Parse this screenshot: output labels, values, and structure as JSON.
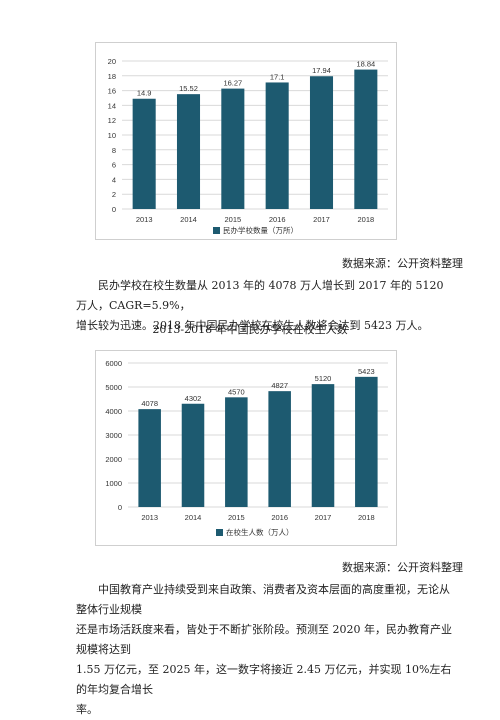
{
  "chart1": {
    "legend": "民办学校数量（万所）",
    "color": "#1d5a70"
  },
  "chart2": {
    "legend": "在校生人数（万人）",
    "color": "#1d5a70"
  },
  "chart_data": [
    {
      "type": "bar",
      "categories": [
        "2013",
        "2014",
        "2015",
        "2016",
        "2017",
        "2018"
      ],
      "series": [
        {
          "name": "民办学校数量（万所）",
          "values": [
            14.9,
            15.52,
            16.27,
            17.1,
            17.94,
            18.84
          ]
        }
      ],
      "data_labels": [
        "14.9",
        "15.52",
        "16.27",
        "17.1",
        "17.94",
        "18.84"
      ],
      "ylim": [
        0,
        20
      ],
      "yticks": [
        0,
        2,
        4,
        6,
        8,
        10,
        12,
        14,
        16,
        18,
        20
      ],
      "legend_position": "bottom",
      "grid": true
    },
    {
      "type": "bar",
      "title": "2013-2018年中国民办学校在校生人数",
      "categories": [
        "2013",
        "2014",
        "2015",
        "2016",
        "2017",
        "2018"
      ],
      "series": [
        {
          "name": "在校生人数（万人）",
          "values": [
            4078,
            4302,
            4570,
            4827,
            5120,
            5423
          ]
        }
      ],
      "data_labels": [
        "4078",
        "4302",
        "4570",
        "4827",
        "5120",
        "5423"
      ],
      "ylim": [
        0,
        6000
      ],
      "yticks": [
        0,
        1000,
        2000,
        3000,
        4000,
        5000,
        6000
      ],
      "legend_position": "bottom",
      "grid": true
    }
  ],
  "source1": "数据来源：公开资料整理",
  "para1": {
    "line1": "民办学校在校生数量从 2013 年的 4078 万人增长到 2017 年的 5120 万人，CAGR=5.9%，",
    "line2": "增长较为迅速。2018 年中国民办学校在校生人数将会达到 5423 万人。"
  },
  "title2": "2013-2018 年中国民办学校在校生人数",
  "source2": "数据来源：公开资料整理",
  "para2": {
    "line1": "中国教育产业持续受到来自政策、消费者及资本层面的高度重视，无论从整体行业规模",
    "line2": "还是市场活跃度来看，皆处于不断扩张阶段。预测至 2020 年，民办教育产业规模将达到",
    "line3": "1.55 万亿元，至 2025 年，这一数字将接近 2.45 万亿元，并实现 10%左右的年均复合增长",
    "line4": "率。"
  }
}
